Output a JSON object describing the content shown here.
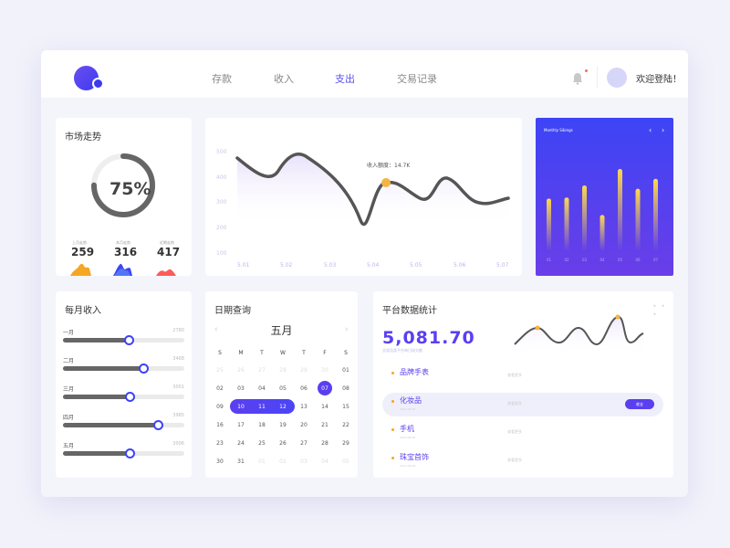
{
  "nav": {
    "items": [
      "存款",
      "收入",
      "支出",
      "交易记录"
    ],
    "active_index": 2
  },
  "header": {
    "welcome": "欢迎登陆！"
  },
  "market": {
    "title": "市场走势",
    "percent": 0.75,
    "percent_label": "75%",
    "stats": [
      {
        "label": "上月走势",
        "value": "259"
      },
      {
        "label": "本月走势",
        "value": "316"
      },
      {
        "label": "近期走势",
        "value": "417"
      }
    ],
    "colors": [
      "#f5a623",
      "#3d44f5",
      "#ff5a5a"
    ]
  },
  "income_chart": {
    "tooltip": "收入额度：14.7K",
    "y_ticks": [
      "500",
      "400",
      "300",
      "200",
      "100"
    ],
    "x_ticks": [
      "5.01",
      "5.02",
      "5.03",
      "5.04",
      "5.05",
      "5.06",
      "5.07"
    ]
  },
  "monthly": {
    "title": "Monthly Sibings",
    "prev": "‹",
    "next": "›",
    "bar_values": [
      0.48,
      0.49,
      0.6,
      0.33,
      0.75,
      0.57,
      0.66
    ],
    "x_labels": [
      "01",
      "02",
      "03",
      "04",
      "05",
      "06",
      "07"
    ]
  },
  "monthly_income": {
    "title": "每月收入",
    "rows": [
      {
        "label": "一月",
        "value": "2780",
        "level": 0.55
      },
      {
        "label": "二月",
        "value": "3468",
        "level": 0.67
      },
      {
        "label": "三月",
        "value": "3001",
        "level": 0.56
      },
      {
        "label": "四月",
        "value": "3985",
        "level": 0.79
      },
      {
        "label": "五月",
        "value": "3006",
        "level": 0.56
      }
    ]
  },
  "calendar": {
    "title": "日期查询",
    "month": "五月",
    "prev": "‹",
    "next": "›",
    "weekdays": [
      "S",
      "M",
      "T",
      "W",
      "T",
      "F",
      "S"
    ],
    "weeks": [
      [
        "25",
        "26",
        "27",
        "28",
        "29",
        "30",
        "01"
      ],
      [
        "02",
        "03",
        "04",
        "05",
        "06",
        "07",
        "08"
      ],
      [
        "09",
        "10",
        "11",
        "12",
        "13",
        "14",
        "15"
      ],
      [
        "16",
        "17",
        "18",
        "19",
        "20",
        "21",
        "22"
      ],
      [
        "23",
        "24",
        "25",
        "26",
        "27",
        "28",
        "29"
      ],
      [
        "30",
        "31",
        "01",
        "02",
        "03",
        "04",
        "05"
      ]
    ],
    "selected": "07",
    "range": [
      "10",
      "11",
      "12"
    ]
  },
  "platform": {
    "title": "平台数据统计",
    "more": "• • •",
    "total": "5,081.70",
    "total_sub": "全部品类平台每日成交额",
    "items": [
      {
        "name": "品牌手表",
        "sub": "",
        "mid": "查看更多",
        "highlighted": false,
        "button": ""
      },
      {
        "name": "化妆品",
        "sub": "2019.05.08",
        "mid": "查看更多",
        "highlighted": true,
        "button": "收支"
      },
      {
        "name": "手机",
        "sub": "2019.05.08",
        "mid": "查看更多",
        "highlighted": false,
        "button": ""
      },
      {
        "name": "珠宝首饰",
        "sub": "2019.05.08",
        "mid": "查看更多",
        "highlighted": false,
        "button": ""
      }
    ]
  }
}
